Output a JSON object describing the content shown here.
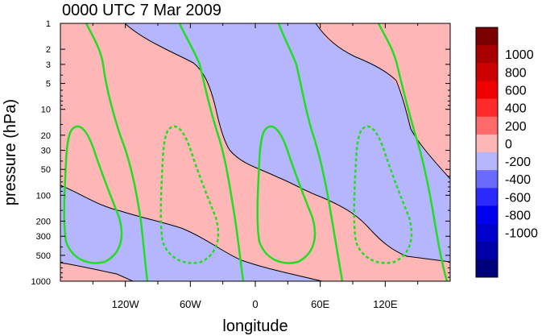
{
  "chart_data": {
    "type": "heatmap",
    "title": "0000 UTC 7 Mar 2009",
    "xlabel": "longitude",
    "ylabel": "pressure (hPa)",
    "y_scale": "log",
    "y_reversed": true,
    "ylim": [
      1000,
      1
    ],
    "xlim": [
      -180,
      180
    ],
    "y_ticks": [
      "1",
      "2",
      "3",
      "5",
      "10",
      "20",
      "30",
      "50",
      "100",
      "200",
      "300",
      "500",
      "1000"
    ],
    "x_ticks": [
      "120W",
      "60W",
      "0",
      "60E",
      "120E"
    ],
    "colorbar": {
      "labels": [
        "1000",
        "800",
        "600",
        "400",
        "200",
        "0",
        "-200",
        "-400",
        "-600",
        "-800",
        "-1000"
      ],
      "colors": [
        "#7a0000",
        "#a80000",
        "#cc0000",
        "#ee0000",
        "#ff2a2a",
        "#ff6a6a",
        "#ffb6b6",
        "#b6b6ff",
        "#6a6aff",
        "#2a2aff",
        "#0000ee",
        "#0000cc",
        "#0000a8",
        "#00007a"
      ]
    },
    "fill_colors": {
      "positive": "#ffb6b6",
      "negative": "#b6b6ff"
    },
    "overlay_contour_color": "#22dd22",
    "grid": false
  }
}
